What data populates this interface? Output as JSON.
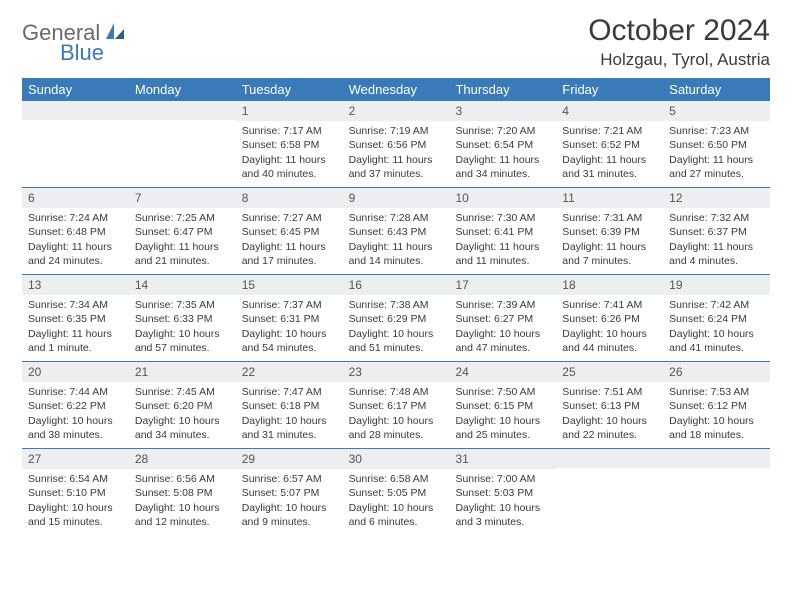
{
  "logo": {
    "part1": "General",
    "part2": "Blue"
  },
  "title": "October 2024",
  "location": "Holzgau, Tyrol, Austria",
  "colors": {
    "accent": "#3a7ab8",
    "header_bg": "#3a7ab8",
    "daynum_bg": "#eceef0"
  },
  "day_names": [
    "Sunday",
    "Monday",
    "Tuesday",
    "Wednesday",
    "Thursday",
    "Friday",
    "Saturday"
  ],
  "weeks": [
    [
      null,
      null,
      {
        "n": "1",
        "sr": "Sunrise: 7:17 AM",
        "ss": "Sunset: 6:58 PM",
        "dl1": "Daylight: 11 hours",
        "dl2": "and 40 minutes."
      },
      {
        "n": "2",
        "sr": "Sunrise: 7:19 AM",
        "ss": "Sunset: 6:56 PM",
        "dl1": "Daylight: 11 hours",
        "dl2": "and 37 minutes."
      },
      {
        "n": "3",
        "sr": "Sunrise: 7:20 AM",
        "ss": "Sunset: 6:54 PM",
        "dl1": "Daylight: 11 hours",
        "dl2": "and 34 minutes."
      },
      {
        "n": "4",
        "sr": "Sunrise: 7:21 AM",
        "ss": "Sunset: 6:52 PM",
        "dl1": "Daylight: 11 hours",
        "dl2": "and 31 minutes."
      },
      {
        "n": "5",
        "sr": "Sunrise: 7:23 AM",
        "ss": "Sunset: 6:50 PM",
        "dl1": "Daylight: 11 hours",
        "dl2": "and 27 minutes."
      }
    ],
    [
      {
        "n": "6",
        "sr": "Sunrise: 7:24 AM",
        "ss": "Sunset: 6:48 PM",
        "dl1": "Daylight: 11 hours",
        "dl2": "and 24 minutes."
      },
      {
        "n": "7",
        "sr": "Sunrise: 7:25 AM",
        "ss": "Sunset: 6:47 PM",
        "dl1": "Daylight: 11 hours",
        "dl2": "and 21 minutes."
      },
      {
        "n": "8",
        "sr": "Sunrise: 7:27 AM",
        "ss": "Sunset: 6:45 PM",
        "dl1": "Daylight: 11 hours",
        "dl2": "and 17 minutes."
      },
      {
        "n": "9",
        "sr": "Sunrise: 7:28 AM",
        "ss": "Sunset: 6:43 PM",
        "dl1": "Daylight: 11 hours",
        "dl2": "and 14 minutes."
      },
      {
        "n": "10",
        "sr": "Sunrise: 7:30 AM",
        "ss": "Sunset: 6:41 PM",
        "dl1": "Daylight: 11 hours",
        "dl2": "and 11 minutes."
      },
      {
        "n": "11",
        "sr": "Sunrise: 7:31 AM",
        "ss": "Sunset: 6:39 PM",
        "dl1": "Daylight: 11 hours",
        "dl2": "and 7 minutes."
      },
      {
        "n": "12",
        "sr": "Sunrise: 7:32 AM",
        "ss": "Sunset: 6:37 PM",
        "dl1": "Daylight: 11 hours",
        "dl2": "and 4 minutes."
      }
    ],
    [
      {
        "n": "13",
        "sr": "Sunrise: 7:34 AM",
        "ss": "Sunset: 6:35 PM",
        "dl1": "Daylight: 11 hours",
        "dl2": "and 1 minute."
      },
      {
        "n": "14",
        "sr": "Sunrise: 7:35 AM",
        "ss": "Sunset: 6:33 PM",
        "dl1": "Daylight: 10 hours",
        "dl2": "and 57 minutes."
      },
      {
        "n": "15",
        "sr": "Sunrise: 7:37 AM",
        "ss": "Sunset: 6:31 PM",
        "dl1": "Daylight: 10 hours",
        "dl2": "and 54 minutes."
      },
      {
        "n": "16",
        "sr": "Sunrise: 7:38 AM",
        "ss": "Sunset: 6:29 PM",
        "dl1": "Daylight: 10 hours",
        "dl2": "and 51 minutes."
      },
      {
        "n": "17",
        "sr": "Sunrise: 7:39 AM",
        "ss": "Sunset: 6:27 PM",
        "dl1": "Daylight: 10 hours",
        "dl2": "and 47 minutes."
      },
      {
        "n": "18",
        "sr": "Sunrise: 7:41 AM",
        "ss": "Sunset: 6:26 PM",
        "dl1": "Daylight: 10 hours",
        "dl2": "and 44 minutes."
      },
      {
        "n": "19",
        "sr": "Sunrise: 7:42 AM",
        "ss": "Sunset: 6:24 PM",
        "dl1": "Daylight: 10 hours",
        "dl2": "and 41 minutes."
      }
    ],
    [
      {
        "n": "20",
        "sr": "Sunrise: 7:44 AM",
        "ss": "Sunset: 6:22 PM",
        "dl1": "Daylight: 10 hours",
        "dl2": "and 38 minutes."
      },
      {
        "n": "21",
        "sr": "Sunrise: 7:45 AM",
        "ss": "Sunset: 6:20 PM",
        "dl1": "Daylight: 10 hours",
        "dl2": "and 34 minutes."
      },
      {
        "n": "22",
        "sr": "Sunrise: 7:47 AM",
        "ss": "Sunset: 6:18 PM",
        "dl1": "Daylight: 10 hours",
        "dl2": "and 31 minutes."
      },
      {
        "n": "23",
        "sr": "Sunrise: 7:48 AM",
        "ss": "Sunset: 6:17 PM",
        "dl1": "Daylight: 10 hours",
        "dl2": "and 28 minutes."
      },
      {
        "n": "24",
        "sr": "Sunrise: 7:50 AM",
        "ss": "Sunset: 6:15 PM",
        "dl1": "Daylight: 10 hours",
        "dl2": "and 25 minutes."
      },
      {
        "n": "25",
        "sr": "Sunrise: 7:51 AM",
        "ss": "Sunset: 6:13 PM",
        "dl1": "Daylight: 10 hours",
        "dl2": "and 22 minutes."
      },
      {
        "n": "26",
        "sr": "Sunrise: 7:53 AM",
        "ss": "Sunset: 6:12 PM",
        "dl1": "Daylight: 10 hours",
        "dl2": "and 18 minutes."
      }
    ],
    [
      {
        "n": "27",
        "sr": "Sunrise: 6:54 AM",
        "ss": "Sunset: 5:10 PM",
        "dl1": "Daylight: 10 hours",
        "dl2": "and 15 minutes."
      },
      {
        "n": "28",
        "sr": "Sunrise: 6:56 AM",
        "ss": "Sunset: 5:08 PM",
        "dl1": "Daylight: 10 hours",
        "dl2": "and 12 minutes."
      },
      {
        "n": "29",
        "sr": "Sunrise: 6:57 AM",
        "ss": "Sunset: 5:07 PM",
        "dl1": "Daylight: 10 hours",
        "dl2": "and 9 minutes."
      },
      {
        "n": "30",
        "sr": "Sunrise: 6:58 AM",
        "ss": "Sunset: 5:05 PM",
        "dl1": "Daylight: 10 hours",
        "dl2": "and 6 minutes."
      },
      {
        "n": "31",
        "sr": "Sunrise: 7:00 AM",
        "ss": "Sunset: 5:03 PM",
        "dl1": "Daylight: 10 hours",
        "dl2": "and 3 minutes."
      },
      null,
      null
    ]
  ]
}
